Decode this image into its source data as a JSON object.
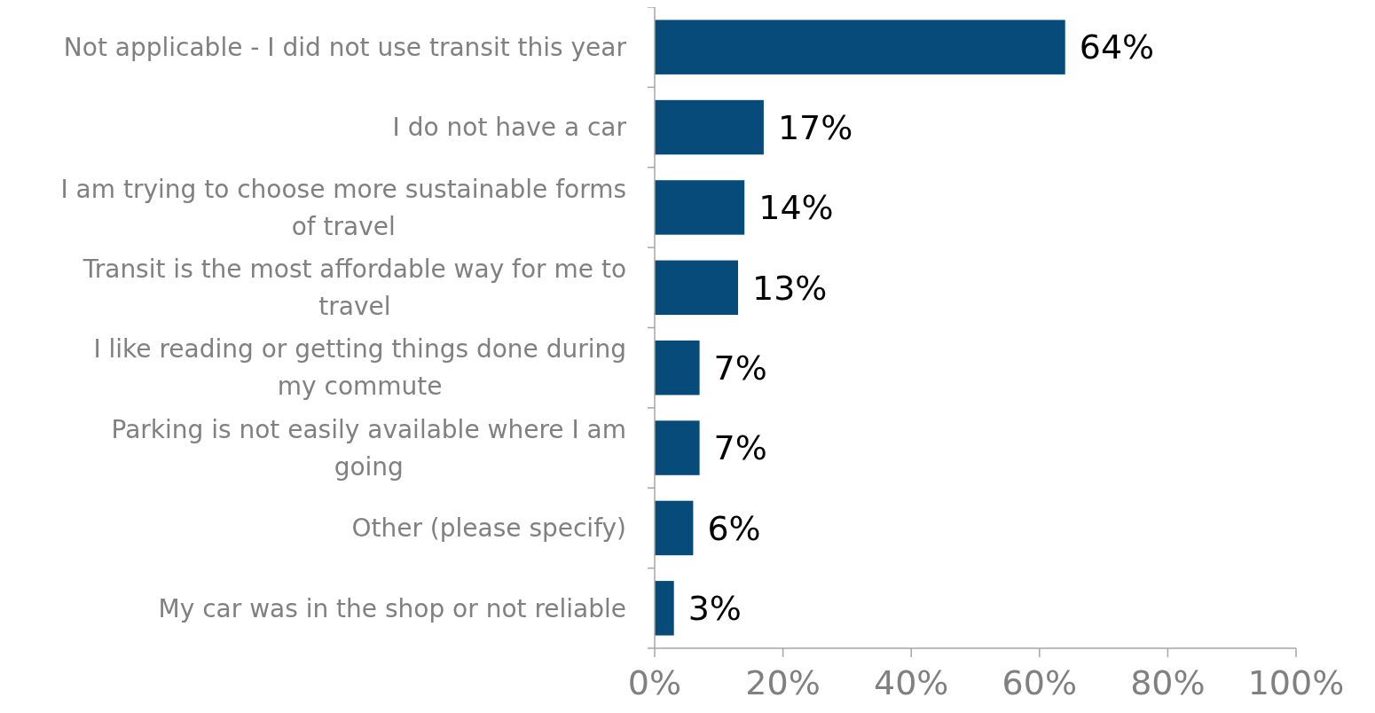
{
  "chart_data": {
    "type": "bar",
    "orientation": "horizontal",
    "categories": [
      "Not applicable - I did not use transit this year",
      "I do not have a car",
      "I am trying to choose more sustainable forms of travel",
      "Transit is the most affordable way for me to travel",
      "I like reading or getting things done during my commute",
      "Parking is not easily available where I am going",
      "Other (please specify)",
      "My car was in the shop or not reliable"
    ],
    "values": [
      64,
      17,
      14,
      13,
      7,
      7,
      6,
      3
    ],
    "value_labels": [
      "64%",
      "17%",
      "14%",
      "13%",
      "7%",
      "7%",
      "6%",
      "3%"
    ],
    "color": "#074b7a",
    "xlim": [
      0,
      100
    ],
    "xticks": [
      {
        "value": 0,
        "label": "0%"
      },
      {
        "value": 20,
        "label": "20%"
      },
      {
        "value": 40,
        "label": "40%"
      },
      {
        "value": 60,
        "label": "60%"
      },
      {
        "value": 80,
        "label": "80%"
      },
      {
        "value": 100,
        "label": "100%"
      }
    ],
    "grid": false
  }
}
